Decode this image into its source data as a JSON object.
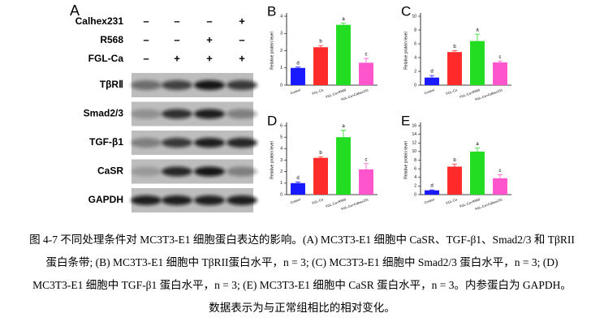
{
  "blot": {
    "panel": "A",
    "treatments": [
      {
        "name": "Calhex231",
        "signs": [
          "–",
          "–",
          "–",
          "+"
        ]
      },
      {
        "name": "R568",
        "signs": [
          "–",
          "–",
          "+",
          "–"
        ]
      },
      {
        "name": "FGL-Ca",
        "signs": [
          "–",
          "+",
          "+",
          "+"
        ]
      }
    ],
    "proteins": [
      "TβRⅡ",
      "Smad2/3",
      "TGF-β1",
      "CaSR",
      "GAPDH"
    ]
  },
  "chart_data": [
    {
      "type": "bar",
      "title": "B",
      "ylabel": "Relative protein level",
      "categories": [
        "Control",
        "FGL-Ca",
        "FGL-Ca+R568",
        "FGL-Ca+Calhex231"
      ],
      "values": [
        1.0,
        2.2,
        3.5,
        1.3
      ],
      "errors": [
        0.05,
        0.1,
        0.1,
        0.25
      ],
      "colors": [
        "#1a1aff",
        "#ff2a2a",
        "#22dd22",
        "#ff55cc"
      ],
      "annotations": [
        "d",
        "b",
        "a",
        "c"
      ],
      "ylim": [
        0,
        4
      ],
      "yticks": [
        0,
        1,
        2,
        3,
        4
      ]
    },
    {
      "type": "bar",
      "title": "C",
      "ylabel": "Relative protein level",
      "categories": [
        "Control",
        "FGL-Ca",
        "FGL-Ca+R568",
        "FGL-Ca+Calhex231"
      ],
      "values": [
        1.1,
        4.8,
        6.4,
        3.3
      ],
      "errors": [
        0.3,
        0.2,
        1.0,
        0.2
      ],
      "colors": [
        "#1a1aff",
        "#ff2a2a",
        "#22dd22",
        "#ff55cc"
      ],
      "annotations": [
        "d",
        "b",
        "a",
        "c"
      ],
      "ylim": [
        0,
        10
      ],
      "yticks": [
        0,
        2,
        4,
        6,
        8,
        10
      ]
    },
    {
      "type": "bar",
      "title": "D",
      "ylabel": "Relative protein level",
      "categories": [
        "Control",
        "FGL-Ca",
        "FGL-Ca+R568",
        "FGL-Ca+Calhex231"
      ],
      "values": [
        1.0,
        3.2,
        5.0,
        2.2
      ],
      "errors": [
        0.1,
        0.1,
        0.6,
        0.5
      ],
      "colors": [
        "#1a1aff",
        "#ff2a2a",
        "#22dd22",
        "#ff55cc"
      ],
      "annotations": [
        "d",
        "b",
        "a",
        "c"
      ],
      "ylim": [
        0,
        6
      ],
      "yticks": [
        0,
        1,
        2,
        3,
        4,
        5,
        6
      ]
    },
    {
      "type": "bar",
      "title": "E",
      "ylabel": "Relative protein level",
      "categories": [
        "Control",
        "FGL-Ca",
        "FGL-Ca+R568",
        "FGL-Ca+Calhex231"
      ],
      "values": [
        1.0,
        6.5,
        10.0,
        3.8
      ],
      "errors": [
        0.1,
        0.6,
        0.8,
        0.8
      ],
      "colors": [
        "#1a1aff",
        "#ff2a2a",
        "#22dd22",
        "#ff55cc"
      ],
      "annotations": [
        "d",
        "b",
        "a",
        "c"
      ],
      "ylim": [
        0,
        16
      ],
      "yticks": [
        0,
        2,
        4,
        6,
        8,
        10,
        12,
        14,
        16
      ]
    }
  ],
  "caption": {
    "lines": [
      "图 4-7 不同处理条件对 MC3T3-E1 细胞蛋白表达的影响。(A) MC3T3-E1 细胞中 CaSR、TGF-β1、Smad2/3 和 TβRII",
      "蛋白条带; (B) MC3T3-E1 细胞中 TβRII蛋白水平，n = 3; (C) MC3T3-E1 细胞中 Smad2/3 蛋白水平，n = 3; (D)",
      "MC3T3-E1 细胞中 TGF-β1 蛋白水平，n = 3; (E) MC3T3-E1 细胞中 CaSR 蛋白水平，n = 3。内参蛋白为 GAPDH。",
      "数据表示为与正常组相比的相对变化。"
    ]
  }
}
